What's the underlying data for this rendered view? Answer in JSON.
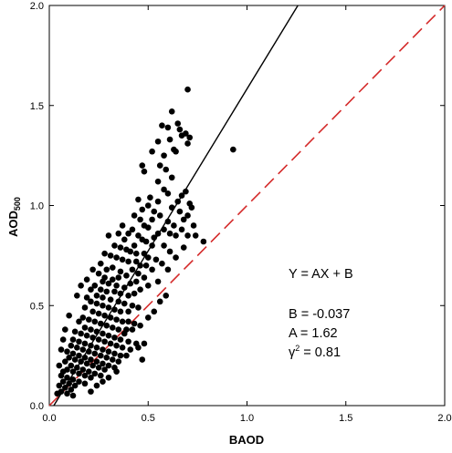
{
  "chart_data": {
    "type": "scatter",
    "xlabel": "BAOD",
    "ylabel": "AOD",
    "ylabel_sub": "500",
    "xlim": [
      0.0,
      2.0
    ],
    "ylim": [
      0.0,
      2.0
    ],
    "xticks": [
      "0.0",
      "0.5",
      "1.0",
      "1.5",
      "2.0"
    ],
    "yticks": [
      "0.0",
      "0.5",
      "1.0",
      "1.5",
      "2.0"
    ],
    "grid": false,
    "fit_line": {
      "slope": 1.62,
      "intercept": -0.037,
      "color": "#000000"
    },
    "one_to_one_line": {
      "slope": 1.0,
      "intercept": 0.0,
      "color": "#d42a2a",
      "style": "dashed"
    },
    "annotations": {
      "equation": "Y = AX + B",
      "b_text": "B = -0.037",
      "a_text": "A = 1.62",
      "r_text_prefix": "γ",
      "r_text_exp": "2",
      "r_text_suffix": " = 0.81"
    },
    "point_color": "#000000",
    "points": [
      [
        0.7,
        1.58
      ],
      [
        0.62,
        1.47
      ],
      [
        0.93,
        1.28
      ],
      [
        0.57,
        1.4
      ],
      [
        0.6,
        1.39
      ],
      [
        0.65,
        1.41
      ],
      [
        0.66,
        1.38
      ],
      [
        0.67,
        1.35
      ],
      [
        0.69,
        1.36
      ],
      [
        0.7,
        1.31
      ],
      [
        0.55,
        1.32
      ],
      [
        0.61,
        1.33
      ],
      [
        0.71,
        1.34
      ],
      [
        0.63,
        1.28
      ],
      [
        0.64,
        1.27
      ],
      [
        0.58,
        1.25
      ],
      [
        0.52,
        1.27
      ],
      [
        0.47,
        1.2
      ],
      [
        0.56,
        1.2
      ],
      [
        0.59,
        1.18
      ],
      [
        0.48,
        1.17
      ],
      [
        0.62,
        1.14
      ],
      [
        0.67,
        1.05
      ],
      [
        0.65,
        1.02
      ],
      [
        0.69,
        1.07
      ],
      [
        0.6,
        1.06
      ],
      [
        0.55,
        1.02
      ],
      [
        0.5,
        1.0
      ],
      [
        0.51,
        1.04
      ],
      [
        0.45,
        1.03
      ],
      [
        0.71,
        1.01
      ],
      [
        0.72,
        0.99
      ],
      [
        0.66,
        0.97
      ],
      [
        0.7,
        0.95
      ],
      [
        0.68,
        0.93
      ],
      [
        0.73,
        0.9
      ],
      [
        0.6,
        0.92
      ],
      [
        0.63,
        0.9
      ],
      [
        0.67,
        0.88
      ],
      [
        0.74,
        0.85
      ],
      [
        0.7,
        0.85
      ],
      [
        0.78,
        0.82
      ],
      [
        0.56,
        0.95
      ],
      [
        0.52,
        0.93
      ],
      [
        0.46,
        0.93
      ],
      [
        0.48,
        0.9
      ],
      [
        0.5,
        0.89
      ],
      [
        0.58,
        0.88
      ],
      [
        0.55,
        0.86
      ],
      [
        0.61,
        0.86
      ],
      [
        0.64,
        0.85
      ],
      [
        0.53,
        0.84
      ],
      [
        0.42,
        0.88
      ],
      [
        0.4,
        0.86
      ],
      [
        0.45,
        0.85
      ],
      [
        0.47,
        0.83
      ],
      [
        0.49,
        0.82
      ],
      [
        0.52,
        0.8
      ],
      [
        0.43,
        0.8
      ],
      [
        0.38,
        0.83
      ],
      [
        0.35,
        0.86
      ],
      [
        0.3,
        0.85
      ],
      [
        0.33,
        0.8
      ],
      [
        0.36,
        0.79
      ],
      [
        0.39,
        0.78
      ],
      [
        0.41,
        0.77
      ],
      [
        0.44,
        0.76
      ],
      [
        0.48,
        0.76
      ],
      [
        0.5,
        0.74
      ],
      [
        0.54,
        0.73
      ],
      [
        0.57,
        0.71
      ],
      [
        0.46,
        0.7
      ],
      [
        0.4,
        0.72
      ],
      [
        0.37,
        0.73
      ],
      [
        0.34,
        0.74
      ],
      [
        0.31,
        0.75
      ],
      [
        0.28,
        0.76
      ],
      [
        0.32,
        0.69
      ],
      [
        0.29,
        0.68
      ],
      [
        0.36,
        0.67
      ],
      [
        0.42,
        0.68
      ],
      [
        0.45,
        0.66
      ],
      [
        0.39,
        0.65
      ],
      [
        0.35,
        0.64
      ],
      [
        0.32,
        0.63
      ],
      [
        0.28,
        0.64
      ],
      [
        0.25,
        0.66
      ],
      [
        0.27,
        0.62
      ],
      [
        0.3,
        0.61
      ],
      [
        0.34,
        0.6
      ],
      [
        0.38,
        0.59
      ],
      [
        0.41,
        0.61
      ],
      [
        0.44,
        0.62
      ],
      [
        0.48,
        0.64
      ],
      [
        0.5,
        0.6
      ],
      [
        0.46,
        0.58
      ],
      [
        0.43,
        0.56
      ],
      [
        0.4,
        0.55
      ],
      [
        0.36,
        0.56
      ],
      [
        0.33,
        0.57
      ],
      [
        0.29,
        0.57
      ],
      [
        0.26,
        0.58
      ],
      [
        0.23,
        0.6
      ],
      [
        0.21,
        0.58
      ],
      [
        0.24,
        0.55
      ],
      [
        0.27,
        0.54
      ],
      [
        0.31,
        0.53
      ],
      [
        0.35,
        0.52
      ],
      [
        0.38,
        0.51
      ],
      [
        0.42,
        0.5
      ],
      [
        0.45,
        0.49
      ],
      [
        0.4,
        0.47
      ],
      [
        0.36,
        0.47
      ],
      [
        0.33,
        0.48
      ],
      [
        0.3,
        0.49
      ],
      [
        0.27,
        0.5
      ],
      [
        0.24,
        0.51
      ],
      [
        0.21,
        0.52
      ],
      [
        0.19,
        0.54
      ],
      [
        0.18,
        0.49
      ],
      [
        0.22,
        0.47
      ],
      [
        0.25,
        0.46
      ],
      [
        0.28,
        0.45
      ],
      [
        0.31,
        0.44
      ],
      [
        0.34,
        0.43
      ],
      [
        0.37,
        0.42
      ],
      [
        0.4,
        0.42
      ],
      [
        0.43,
        0.41
      ],
      [
        0.39,
        0.38
      ],
      [
        0.35,
        0.38
      ],
      [
        0.32,
        0.39
      ],
      [
        0.29,
        0.4
      ],
      [
        0.26,
        0.41
      ],
      [
        0.23,
        0.42
      ],
      [
        0.2,
        0.43
      ],
      [
        0.17,
        0.44
      ],
      [
        0.15,
        0.42
      ],
      [
        0.18,
        0.39
      ],
      [
        0.21,
        0.38
      ],
      [
        0.24,
        0.37
      ],
      [
        0.27,
        0.36
      ],
      [
        0.3,
        0.35
      ],
      [
        0.33,
        0.34
      ],
      [
        0.36,
        0.33
      ],
      [
        0.4,
        0.32
      ],
      [
        0.44,
        0.31
      ],
      [
        0.48,
        0.31
      ],
      [
        0.45,
        0.29
      ],
      [
        0.41,
        0.28
      ],
      [
        0.37,
        0.29
      ],
      [
        0.34,
        0.3
      ],
      [
        0.31,
        0.31
      ],
      [
        0.28,
        0.32
      ],
      [
        0.25,
        0.33
      ],
      [
        0.22,
        0.34
      ],
      [
        0.19,
        0.35
      ],
      [
        0.16,
        0.36
      ],
      [
        0.13,
        0.37
      ],
      [
        0.12,
        0.33
      ],
      [
        0.15,
        0.32
      ],
      [
        0.18,
        0.31
      ],
      [
        0.21,
        0.3
      ],
      [
        0.24,
        0.29
      ],
      [
        0.27,
        0.28
      ],
      [
        0.3,
        0.27
      ],
      [
        0.33,
        0.26
      ],
      [
        0.36,
        0.25
      ],
      [
        0.39,
        0.25
      ],
      [
        0.35,
        0.22
      ],
      [
        0.32,
        0.23
      ],
      [
        0.29,
        0.24
      ],
      [
        0.26,
        0.25
      ],
      [
        0.23,
        0.26
      ],
      [
        0.2,
        0.27
      ],
      [
        0.17,
        0.28
      ],
      [
        0.14,
        0.29
      ],
      [
        0.11,
        0.3
      ],
      [
        0.09,
        0.27
      ],
      [
        0.12,
        0.26
      ],
      [
        0.15,
        0.25
      ],
      [
        0.18,
        0.24
      ],
      [
        0.21,
        0.23
      ],
      [
        0.24,
        0.22
      ],
      [
        0.27,
        0.21
      ],
      [
        0.3,
        0.2
      ],
      [
        0.33,
        0.19
      ],
      [
        0.28,
        0.18
      ],
      [
        0.25,
        0.19
      ],
      [
        0.22,
        0.2
      ],
      [
        0.19,
        0.21
      ],
      [
        0.16,
        0.22
      ],
      [
        0.13,
        0.23
      ],
      [
        0.1,
        0.24
      ],
      [
        0.08,
        0.22
      ],
      [
        0.11,
        0.2
      ],
      [
        0.14,
        0.19
      ],
      [
        0.17,
        0.18
      ],
      [
        0.2,
        0.17
      ],
      [
        0.23,
        0.16
      ],
      [
        0.26,
        0.15
      ],
      [
        0.21,
        0.14
      ],
      [
        0.18,
        0.15
      ],
      [
        0.15,
        0.16
      ],
      [
        0.12,
        0.17
      ],
      [
        0.09,
        0.18
      ],
      [
        0.07,
        0.17
      ],
      [
        0.06,
        0.15
      ],
      [
        0.09,
        0.14
      ],
      [
        0.12,
        0.13
      ],
      [
        0.15,
        0.12
      ],
      [
        0.18,
        0.11
      ],
      [
        0.13,
        0.1
      ],
      [
        0.1,
        0.11
      ],
      [
        0.07,
        0.12
      ],
      [
        0.05,
        0.1
      ],
      [
        0.08,
        0.09
      ],
      [
        0.11,
        0.08
      ],
      [
        0.06,
        0.07
      ],
      [
        0.04,
        0.06
      ],
      [
        0.09,
        0.06
      ],
      [
        0.21,
        0.07
      ],
      [
        0.12,
        0.05
      ],
      [
        0.47,
        0.23
      ],
      [
        0.55,
        1.12
      ],
      [
        0.58,
        1.08
      ],
      [
        0.43,
        0.95
      ],
      [
        0.37,
        0.9
      ],
      [
        0.47,
        0.98
      ],
      [
        0.53,
        0.97
      ],
      [
        0.62,
        0.99
      ],
      [
        0.26,
        0.71
      ],
      [
        0.22,
        0.68
      ],
      [
        0.19,
        0.63
      ],
      [
        0.16,
        0.6
      ],
      [
        0.14,
        0.55
      ],
      [
        0.1,
        0.45
      ],
      [
        0.08,
        0.38
      ],
      [
        0.07,
        0.33
      ],
      [
        0.06,
        0.28
      ],
      [
        0.05,
        0.2
      ],
      [
        0.34,
        0.17
      ],
      [
        0.3,
        0.14
      ],
      [
        0.27,
        0.12
      ],
      [
        0.24,
        0.1
      ],
      [
        0.38,
        0.36
      ],
      [
        0.42,
        0.38
      ],
      [
        0.46,
        0.4
      ],
      [
        0.5,
        0.44
      ],
      [
        0.53,
        0.47
      ],
      [
        0.56,
        0.52
      ],
      [
        0.59,
        0.55
      ],
      [
        0.55,
        0.62
      ],
      [
        0.6,
        0.68
      ],
      [
        0.64,
        0.74
      ],
      [
        0.68,
        0.79
      ],
      [
        0.58,
        0.8
      ],
      [
        0.61,
        0.77
      ],
      [
        0.52,
        0.68
      ],
      [
        0.49,
        0.7
      ],
      [
        0.44,
        0.72
      ]
    ]
  }
}
